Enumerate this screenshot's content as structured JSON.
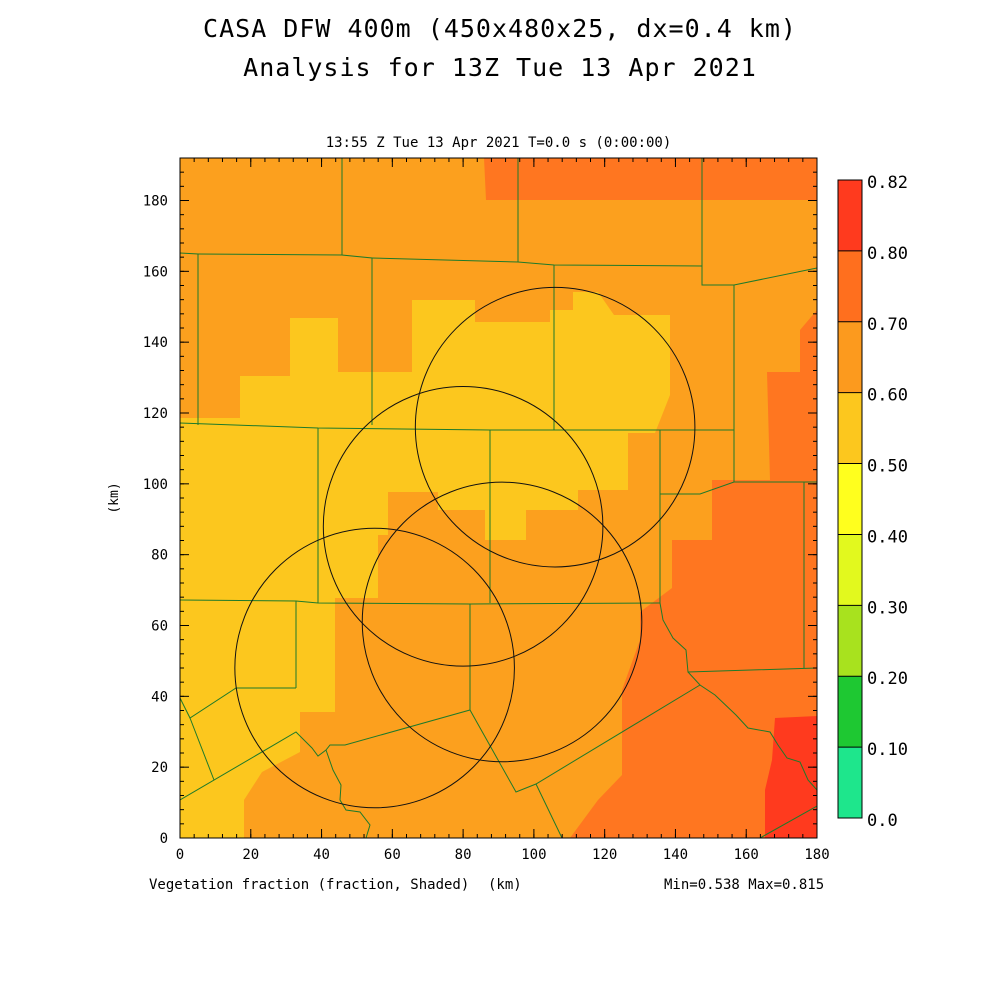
{
  "header": {
    "title_line1": "CASA DFW 400m (450x480x25, dx=0.4 km)",
    "title_line2": "Analysis for 13Z Tue 13 Apr 2021",
    "plot_time": "13:55 Z Tue 13 Apr 2021   T=0.0 s (0:00:00)"
  },
  "footer": {
    "field_label": "Vegetation fraction (fraction, Shaded)",
    "x_unit": "(km)",
    "minmax": "Min=0.538 Max=0.815"
  },
  "chart_data": {
    "type": "heatmap",
    "title": "Vegetation fraction (fraction, Shaded)",
    "xlabel": "(km)",
    "ylabel": "(km)",
    "xlim": [
      0,
      180
    ],
    "ylim": [
      0,
      192
    ],
    "x_ticks": [
      0,
      20,
      40,
      60,
      80,
      100,
      120,
      140,
      160,
      180
    ],
    "y_ticks": [
      0,
      20,
      40,
      60,
      80,
      100,
      120,
      140,
      160,
      180
    ],
    "min": 0.538,
    "max": 0.815,
    "colorbar": {
      "labels": [
        "0.82",
        "0.80",
        "0.70",
        "0.60",
        "0.50",
        "0.40",
        "0.30",
        "0.20",
        "0.10",
        "0.0"
      ],
      "colors": [
        "#ff3a1e",
        "#ff6f1e",
        "#fc9a1e",
        "#fcc71e",
        "#ffff1e",
        "#e2f91e",
        "#a8e21e",
        "#1ec832",
        "#1ee68c"
      ]
    },
    "fill_colors": {
      "0.50-0.60": "#fcc71e",
      "0.60-0.70": "#fca01e",
      "0.70-0.80": "#ff7620",
      "0.80-0.82": "#ff3a1e"
    },
    "range_rings": [
      {
        "center_km": [
          106,
          116
        ],
        "radius_km": 39.5
      },
      {
        "center_km": [
          80,
          88
        ],
        "radius_km": 39.5
      },
      {
        "center_km": [
          91,
          61
        ],
        "radius_km": 39.5
      },
      {
        "center_km": [
          55,
          48
        ],
        "radius_km": 39.5
      }
    ],
    "grid": false
  }
}
